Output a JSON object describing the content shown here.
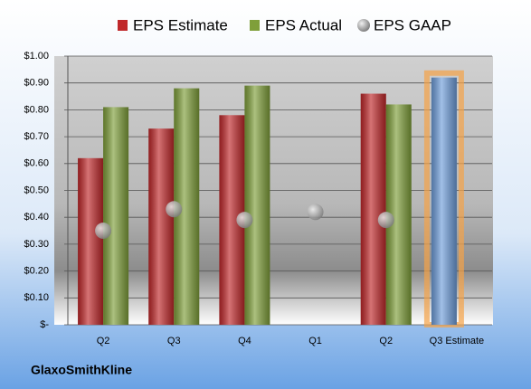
{
  "chart_data": {
    "type": "bar",
    "annotation": "GlaxoSmithKline",
    "categories": [
      "Q2",
      "Q3",
      "Q4",
      "Q1",
      "Q2",
      "Q3 Estimate"
    ],
    "series": [
      {
        "name": "EPS Estimate",
        "color": "#c0282a",
        "point_colors": [
          null,
          null,
          null,
          null,
          null,
          "#6f9edb"
        ],
        "values": [
          0.62,
          0.73,
          0.78,
          null,
          0.86,
          0.92
        ]
      },
      {
        "name": "EPS Actual",
        "color": "#7f9f3a",
        "values": [
          0.81,
          0.88,
          0.89,
          null,
          0.82,
          null
        ]
      },
      {
        "name": "EPS GAAP",
        "color": "#9a9a9a",
        "marker": "sphere",
        "values": [
          0.35,
          0.43,
          0.39,
          0.42,
          0.39,
          null
        ]
      }
    ],
    "highlight_glow": "#f5a347",
    "ylim": [
      0,
      1
    ],
    "yticks": [
      {
        "value": 0,
        "label": "$-"
      },
      {
        "value": 0.1,
        "label": "$0.10"
      },
      {
        "value": 0.2,
        "label": "$0.20"
      },
      {
        "value": 0.3,
        "label": "$0.30"
      },
      {
        "value": 0.4,
        "label": "$0.40"
      },
      {
        "value": 0.5,
        "label": "$0.50"
      },
      {
        "value": 0.6,
        "label": "$0.60"
      },
      {
        "value": 0.7,
        "label": "$0.70"
      },
      {
        "value": 0.8,
        "label": "$0.80"
      },
      {
        "value": 0.9,
        "label": "$0.90"
      },
      {
        "value": 1,
        "label": "$1.00"
      }
    ],
    "grid": true
  }
}
